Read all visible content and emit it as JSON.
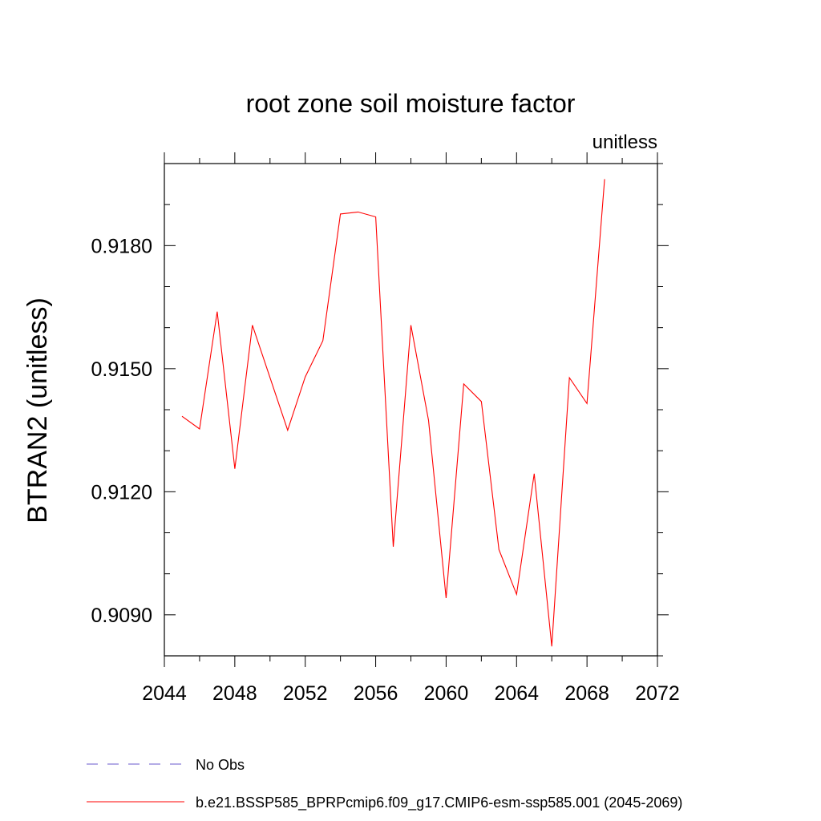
{
  "chart_data": {
    "type": "line",
    "title": "root zone soil moisture factor",
    "units_label": "unitless",
    "ylabel": "BTRAN2  (unitless)",
    "xlabel": "",
    "xlim": [
      2044,
      2072
    ],
    "ylim": [
      0.908,
      0.92
    ],
    "x_ticks": [
      2044,
      2048,
      2052,
      2056,
      2060,
      2064,
      2068,
      2072
    ],
    "x_tick_labels": [
      "2044",
      "2048",
      "2052",
      "2056",
      "2060",
      "2064",
      "2068",
      "2072"
    ],
    "y_ticks": [
      0.909,
      0.912,
      0.915,
      0.918
    ],
    "y_tick_labels": [
      "0.9090",
      "0.9120",
      "0.9150",
      "0.9180"
    ],
    "grid": false,
    "legend_position": "bottom",
    "series": [
      {
        "name": "No Obs",
        "color": "#6a5acd",
        "dash": "dashed",
        "x": [],
        "y": []
      },
      {
        "name": "b.e21.BSSP585_BPRPcmip6.f09_g17.CMIP6-esm-ssp585.001 (2045-2069)",
        "color": "#ff0000",
        "dash": "solid",
        "x": [
          2045,
          2046,
          2047,
          2048,
          2049,
          2050,
          2051,
          2052,
          2053,
          2054,
          2055,
          2056,
          2057,
          2058,
          2059,
          2060,
          2061,
          2062,
          2063,
          2064,
          2065,
          2066,
          2067,
          2068,
          2069
        ],
        "y": [
          0.91384,
          0.91353,
          0.91639,
          0.91256,
          0.91606,
          0.91478,
          0.9135,
          0.9148,
          0.91568,
          0.91877,
          0.91882,
          0.9187,
          0.91066,
          0.91606,
          0.91374,
          0.90941,
          0.91463,
          0.9142,
          0.91059,
          0.9095,
          0.91244,
          0.90823,
          0.91478,
          0.91415,
          0.91962
        ]
      }
    ]
  }
}
